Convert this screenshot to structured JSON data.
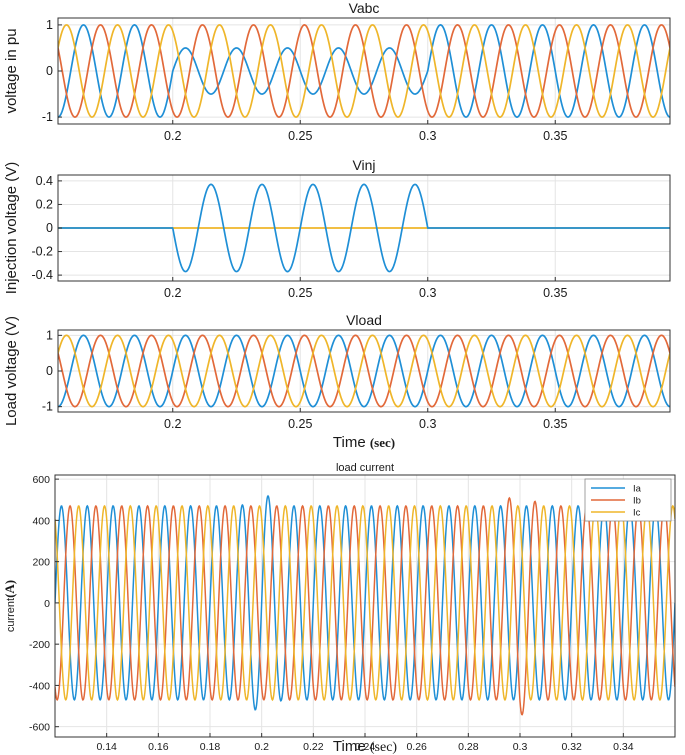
{
  "colors": {
    "a": "#1f8fd6",
    "b": "#e2693a",
    "c": "#efb62a",
    "grid": "#e4e4e4",
    "axis": "#333333"
  },
  "chart_data": [
    {
      "id": "vabc",
      "type": "line",
      "title": "Vabc",
      "ylabel": "voltage in pu",
      "xlabel": "",
      "xlim": [
        0.155,
        0.395
      ],
      "ylim": [
        -1.15,
        1.15
      ],
      "xticks": [
        0.2,
        0.25,
        0.3,
        0.35
      ],
      "xtick_labels": [
        "0.2",
        "0.25",
        "0.3",
        "0.35"
      ],
      "yticks": [
        -1,
        0,
        1
      ],
      "ytick_labels": [
        "-1",
        "0",
        "1"
      ],
      "grid": true,
      "frequency_hz": 50,
      "series": [
        {
          "phase_deg": 0,
          "amplitude": 1,
          "sag": {
            "from": 0.2,
            "to": 0.3,
            "amplitude": 0.5
          }
        },
        {
          "phase_deg": -120,
          "amplitude": 1
        },
        {
          "phase_deg": 120,
          "amplitude": 1
        }
      ]
    },
    {
      "id": "vinj",
      "type": "line",
      "title": "Vinj",
      "ylabel": "Injection voltage  (V)",
      "xlabel": "",
      "xlim": [
        0.155,
        0.395
      ],
      "ylim": [
        -0.45,
        0.45
      ],
      "xticks": [
        0.2,
        0.25,
        0.3,
        0.35
      ],
      "xtick_labels": [
        "0.2",
        "0.25",
        "0.3",
        "0.35"
      ],
      "yticks": [
        -0.4,
        -0.2,
        0,
        0.2,
        0.4
      ],
      "ytick_labels": [
        "-0.4",
        "-0.2",
        "0",
        "0.2",
        "0.4"
      ],
      "grid": true,
      "frequency_hz": 50,
      "series": [
        {
          "phase_deg": 180,
          "amplitude": 0.37,
          "active": {
            "from": 0.2,
            "to": 0.3
          }
        },
        {
          "phase_deg": 0,
          "amplitude": 0
        }
      ]
    },
    {
      "id": "vload",
      "type": "line",
      "title": "Vload",
      "ylabel": "Load voltage  (V)",
      "xlabel": "Time",
      "xlabel_unit": "(sec)",
      "xlim": [
        0.155,
        0.395
      ],
      "ylim": [
        -1.15,
        1.15
      ],
      "xticks": [
        0.2,
        0.25,
        0.3,
        0.35
      ],
      "xtick_labels": [
        "0.2",
        "0.25",
        "0.3",
        "0.35"
      ],
      "yticks": [
        -1,
        0,
        1
      ],
      "ytick_labels": [
        "-1",
        "0",
        "1"
      ],
      "grid": true,
      "frequency_hz": 50,
      "series": [
        {
          "phase_deg": 0,
          "amplitude": 1
        },
        {
          "phase_deg": -120,
          "amplitude": 1
        },
        {
          "phase_deg": 120,
          "amplitude": 1
        }
      ]
    },
    {
      "id": "iload",
      "type": "line",
      "title": "load current",
      "ylabel": "current",
      "ylabel_unit": "(A)",
      "xlabel": "Time",
      "xlabel_unit": "(sec)",
      "xlim": [
        0.12,
        0.36
      ],
      "ylim": [
        -650,
        620
      ],
      "xticks": [
        0.14,
        0.16,
        0.18,
        0.2,
        0.22,
        0.24,
        0.26,
        0.28,
        0.3,
        0.32,
        0.34
      ],
      "xtick_labels": [
        "0.14",
        "0.16",
        "0.18",
        "0.2",
        "0.22",
        "0.24",
        "0.26",
        "0.28",
        "0.3",
        "0.32",
        "0.34"
      ],
      "yticks": [
        -600,
        -400,
        -200,
        0,
        200,
        400,
        600
      ],
      "ytick_labels": [
        "-600",
        "-400",
        "-200",
        "0",
        "200",
        "400",
        "600"
      ],
      "grid": true,
      "legend": "top-right",
      "frequency_hz": 100,
      "series": [
        {
          "name": "Ia",
          "phase_deg": 0,
          "amplitude": 470,
          "transient": [
            {
              "at": 0.2,
              "amplitude": 540
            }
          ]
        },
        {
          "name": "Ib",
          "phase_deg": -120,
          "amplitude": 470,
          "transient": [
            {
              "at": 0.3,
              "amplitude": 550
            }
          ]
        },
        {
          "name": "Ic",
          "phase_deg": 120,
          "amplitude": 470
        }
      ]
    }
  ]
}
